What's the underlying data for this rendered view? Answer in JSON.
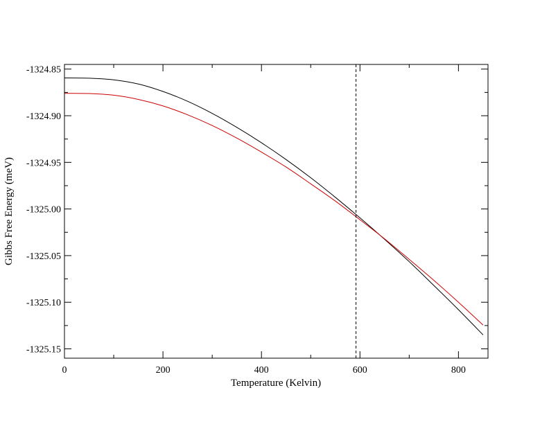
{
  "chart_data": {
    "type": "line",
    "title": "",
    "xlabel": "Temperature (Kelvin)",
    "ylabel": "Gibbs Free Energy (meV)",
    "xlim": [
      0,
      860
    ],
    "ylim": [
      -1325.16,
      -1324.845
    ],
    "x_ticks": [
      0,
      200,
      400,
      600,
      800
    ],
    "x_tick_labels": [
      "0",
      "200",
      "400",
      "600",
      "800"
    ],
    "y_ticks": [
      -1324.85,
      -1324.9,
      -1324.95,
      -1325.0,
      -1325.05,
      -1325.1,
      -1325.15
    ],
    "y_tick_labels": [
      "-1324.85",
      "-1324.90",
      "-1324.95",
      "-1325.00",
      "-1325.05",
      "-1325.10",
      "-1325.15"
    ],
    "vertical_line": {
      "x": 592,
      "style": "dashed",
      "color": "#000000"
    },
    "series": [
      {
        "color": "#000000",
        "x": [
          0,
          50,
          100,
          150,
          200,
          250,
          300,
          350,
          400,
          450,
          500,
          550,
          600,
          650,
          700,
          750,
          800,
          850
        ],
        "y": [
          -1324.8595,
          -1324.8598,
          -1324.8615,
          -1324.866,
          -1324.874,
          -1324.8845,
          -1324.8975,
          -1324.9125,
          -1324.929,
          -1324.947,
          -1324.9665,
          -1324.9875,
          -1325.0095,
          -1325.0325,
          -1325.0565,
          -1325.082,
          -1325.108,
          -1325.135
        ]
      },
      {
        "color": "#cc0000",
        "x": [
          0,
          50,
          100,
          150,
          200,
          250,
          300,
          350,
          400,
          450,
          500,
          550,
          600,
          650,
          700,
          750,
          800,
          850
        ],
        "y": [
          -1324.876,
          -1324.8762,
          -1324.878,
          -1324.8825,
          -1324.8895,
          -1324.899,
          -1324.9105,
          -1324.924,
          -1324.939,
          -1324.955,
          -1324.973,
          -1324.9915,
          -1325.0115,
          -1325.032,
          -1325.054,
          -1325.0765,
          -1325.1,
          -1325.1245
        ]
      }
    ],
    "grid": false,
    "legend": "none"
  }
}
